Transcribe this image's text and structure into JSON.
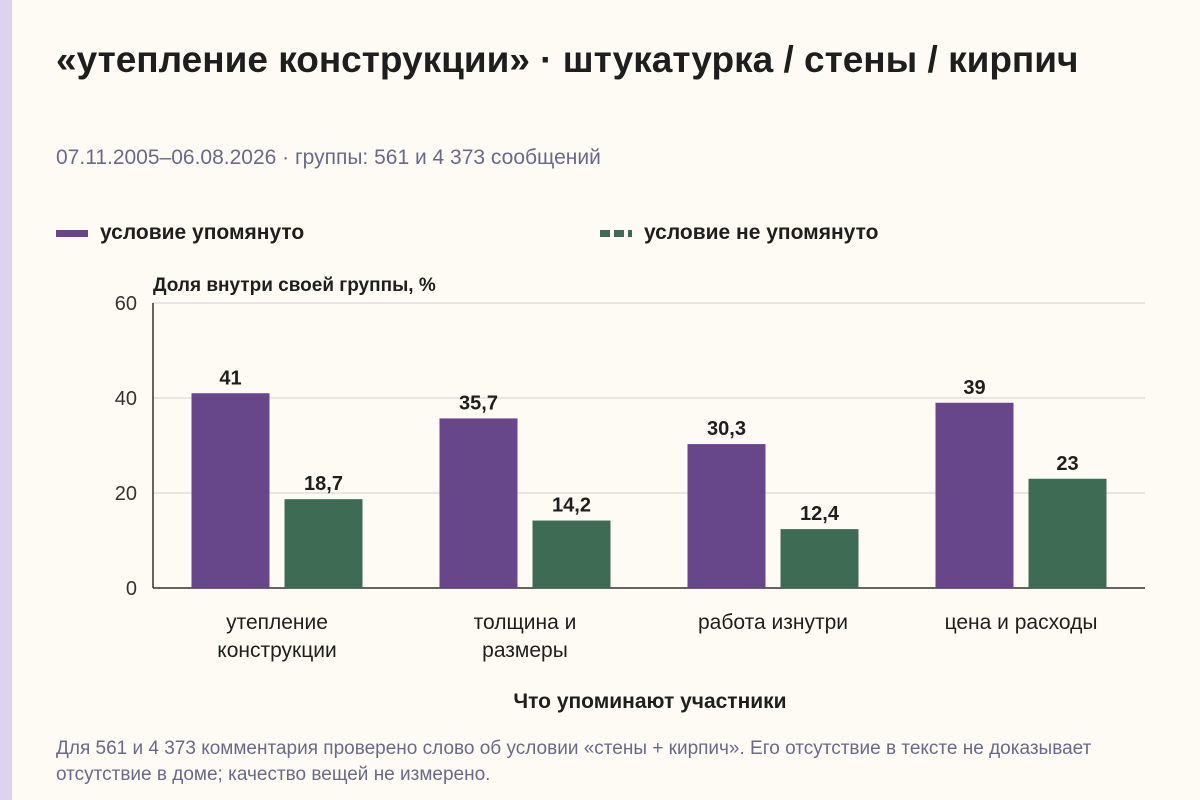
{
  "title": "«утепление конструкции» · штукатурка / стены / кирпич",
  "subtitle": "07.11.2005–06.08.2026 · группы: 561 и 4 373 сообщений",
  "legend": [
    {
      "label": "условие упомянуто",
      "color": "#68468a",
      "style": "solid"
    },
    {
      "label": "условие не упомянуто",
      "color": "#3e6b54",
      "style": "dashed"
    }
  ],
  "footnote": "Для 561 и 4 373 комментария проверено слово об условии «стены + кирпич». Его отсутствие в тексте не доказывает отсутствие в доме; качество вещей не измерено.",
  "chart_data": {
    "type": "bar",
    "ylabel": "Доля внутри своей группы, %",
    "xlabel": "Что упоминают участники",
    "ylim": [
      0,
      60
    ],
    "yticks": [
      0,
      20,
      40,
      60
    ],
    "grid": true,
    "legend_position": "top",
    "categories": [
      [
        "утепление",
        "конструкции"
      ],
      [
        "толщина и",
        "размеры"
      ],
      [
        "работа изнутри"
      ],
      [
        "цена и расходы"
      ]
    ],
    "series": [
      {
        "name": "условие упомянуто",
        "color": "#68468a",
        "values": [
          41,
          35.7,
          30.3,
          39
        ],
        "labels": [
          "41",
          "35,7",
          "30,3",
          "39"
        ]
      },
      {
        "name": "условие не упомянуто",
        "color": "#3e6b54",
        "values": [
          18.7,
          14.2,
          12.4,
          23
        ],
        "labels": [
          "18,7",
          "14,2",
          "12,4",
          "23"
        ]
      }
    ]
  }
}
